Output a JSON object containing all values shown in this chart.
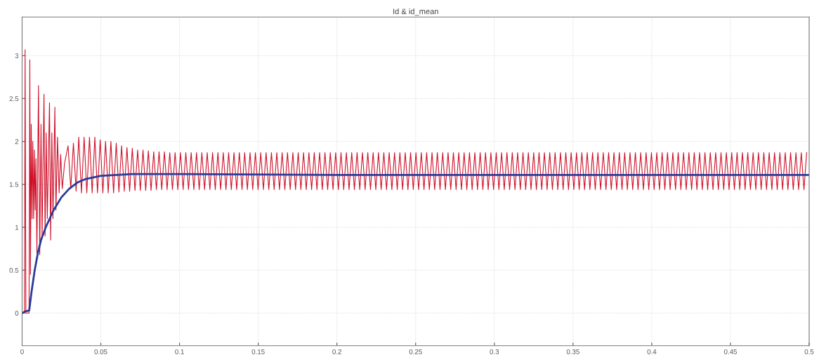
{
  "chart_data": {
    "type": "line",
    "title": "Id & id_mean",
    "xlim": [
      0,
      0.5
    ],
    "ylim": [
      -0.38,
      3.45
    ],
    "xticks": [
      0,
      0.05,
      0.1,
      0.15,
      0.2,
      0.25,
      0.3,
      0.35,
      0.4,
      0.45,
      0.5
    ],
    "yticks": [
      0,
      0.5,
      1,
      1.5,
      2,
      2.5,
      3
    ],
    "grid": true,
    "marker": "none",
    "line_style": "solid",
    "series": [
      {
        "color": "#d0102a",
        "x": [
          0,
          0.0015,
          0.0019,
          0.0024,
          0.0044,
          0.0049,
          0.0053,
          0.0058,
          0.0063,
          0.0068,
          0.0073,
          0.0078,
          0.0083,
          0.0088,
          0.0094,
          0.0104,
          0.0112,
          0.012,
          0.0127,
          0.0139,
          0.0146,
          0.0153,
          0.016,
          0.0174,
          0.0181,
          0.0189,
          0.0196,
          0.0208,
          0.0215,
          0.0225,
          0.0235,
          0.0245,
          0.0255,
          0.027,
          0.0292,
          0.0309,
          0.0326,
          0.0343,
          0.036,
          0.0377,
          0.0394,
          0.0411,
          0.0428,
          0.0445,
          0.0462,
          0.0479,
          0.0496,
          0.0513,
          0.053,
          0.0547,
          0.0564,
          0.0581,
          0.0598,
          0.0615,
          0.0632,
          0.0649,
          0.0666,
          0.0683,
          0.07,
          0.0717,
          0.0734,
          0.0751,
          0.0768,
          0.0785,
          0.0802,
          0.0819,
          0.0836,
          0.0853,
          0.087,
          0.0887,
          0.0904,
          0.0921,
          0.0938,
          0.0955,
          0.0972,
          0.0989,
          0.1006,
          0.1023,
          0.104,
          0.1057,
          0.1074,
          0.1091,
          0.1108,
          0.1125,
          0.1142,
          0.1159,
          0.1176,
          0.1193,
          0.121,
          0.1227,
          0.1244,
          0.1261,
          0.1278,
          0.1295,
          0.1312,
          0.1329,
          0.1346,
          0.1363,
          0.138,
          0.1397,
          0.1414,
          0.1431,
          0.1448,
          0.1465,
          0.1482,
          0.1499,
          0.1516,
          0.1533,
          0.155,
          0.1567,
          0.1584,
          0.1601,
          0.1618,
          0.1635,
          0.1652,
          0.1669,
          0.1686,
          0.1703,
          0.172,
          0.1737,
          0.1754,
          0.1771,
          0.1788,
          0.1805,
          0.1822,
          0.1839,
          0.1856,
          0.1873,
          0.189,
          0.1907,
          0.1924,
          0.1941,
          0.1958,
          0.1975,
          0.1992,
          0.2009,
          0.2026,
          0.2043,
          0.206,
          0.2077,
          0.2094,
          0.2111,
          0.2128,
          0.2145,
          0.2162,
          0.2179,
          0.2196,
          0.2213,
          0.223,
          0.2247,
          0.2264,
          0.2281,
          0.2298,
          0.2315,
          0.2332,
          0.2349,
          0.2366,
          0.2383,
          0.24,
          0.2417,
          0.2434,
          0.2451,
          0.2468,
          0.2485,
          0.2502,
          0.2519,
          0.2536,
          0.2553,
          0.257,
          0.2587,
          0.2604,
          0.2621,
          0.2638,
          0.2655,
          0.2672,
          0.2689,
          0.2706,
          0.2723,
          0.274,
          0.2757,
          0.2774,
          0.2791,
          0.2808,
          0.2825,
          0.2842,
          0.2859,
          0.2876,
          0.2893,
          0.291,
          0.2927,
          0.2944,
          0.2961,
          0.2978,
          0.2995,
          0.3012,
          0.3029,
          0.3046,
          0.3063,
          0.308,
          0.3097,
          0.3114,
          0.3131,
          0.3148,
          0.3165,
          0.3182,
          0.3199,
          0.3216,
          0.3233,
          0.325,
          0.3267,
          0.3284,
          0.3301,
          0.3318,
          0.3335,
          0.3352,
          0.3369,
          0.3386,
          0.3403,
          0.342,
          0.3437,
          0.3454,
          0.3471,
          0.3488,
          0.3505,
          0.3522,
          0.3539,
          0.3556,
          0.3573,
          0.359,
          0.3607,
          0.3624,
          0.3641,
          0.3658,
          0.3675,
          0.3692,
          0.3709,
          0.3726,
          0.3743,
          0.376,
          0.3777,
          0.3794,
          0.3811,
          0.3828,
          0.3845,
          0.3862,
          0.3879,
          0.3896,
          0.3913,
          0.393,
          0.3947,
          0.3964,
          0.3981,
          0.3998,
          0.4015,
          0.4032,
          0.4049,
          0.4066,
          0.4083,
          0.41,
          0.4117,
          0.4134,
          0.4151,
          0.4168,
          0.4185,
          0.4202,
          0.4219,
          0.4236,
          0.4253,
          0.427,
          0.4287,
          0.4304,
          0.4321,
          0.4338,
          0.4355,
          0.4372,
          0.4389,
          0.4406,
          0.4423,
          0.444,
          0.4457,
          0.4474,
          0.4491,
          0.4508,
          0.4525,
          0.4542,
          0.4559,
          0.4576,
          0.4593,
          0.461,
          0.4627,
          0.4644,
          0.4661,
          0.4678,
          0.4695,
          0.4712,
          0.4729,
          0.4746,
          0.4763,
          0.478,
          0.4797,
          0.4814,
          0.4831,
          0.4848,
          0.4865,
          0.4882,
          0.4899,
          0.4916,
          0.4933,
          0.495,
          0.4967,
          0.4984
        ],
        "values": [
          0,
          0,
          3.07,
          0,
          0,
          2.95,
          0.45,
          2.2,
          1.1,
          2.0,
          1.1,
          1.9,
          1.2,
          1.8,
          0.7,
          2.65,
          0.68,
          2.2,
          0.9,
          2.55,
          0.9,
          2.1,
          1.1,
          2.45,
          0.85,
          2.1,
          1.1,
          2.4,
          1.2,
          2.05,
          1.4,
          1.85,
          1.45,
          1.75,
          1.95,
          1.45,
          1.98,
          1.42,
          2.05,
          1.4,
          2.05,
          1.4,
          2.05,
          1.4,
          2.05,
          1.4,
          2.02,
          1.4,
          2.0,
          1.4,
          2.0,
          1.4,
          1.98,
          1.41,
          1.95,
          1.42,
          1.93,
          1.42,
          1.92,
          1.43,
          1.9,
          1.43,
          1.9,
          1.43,
          1.89,
          1.43,
          1.88,
          1.44,
          1.88,
          1.44,
          1.88,
          1.44,
          1.87,
          1.44,
          1.87,
          1.44,
          1.87,
          1.44,
          1.87,
          1.44,
          1.87,
          1.44,
          1.87,
          1.44,
          1.87,
          1.44,
          1.87,
          1.44,
          1.87,
          1.44,
          1.87,
          1.44,
          1.87,
          1.44,
          1.87,
          1.44,
          1.87,
          1.44,
          1.87,
          1.44,
          1.87,
          1.44,
          1.87,
          1.44,
          1.87,
          1.44,
          1.87,
          1.44,
          1.87,
          1.44,
          1.87,
          1.44,
          1.87,
          1.44,
          1.87,
          1.44,
          1.87,
          1.44,
          1.87,
          1.44,
          1.87,
          1.44,
          1.87,
          1.44,
          1.87,
          1.44,
          1.87,
          1.44,
          1.87,
          1.44,
          1.87,
          1.44,
          1.87,
          1.44,
          1.87,
          1.44,
          1.87,
          1.44,
          1.87,
          1.44,
          1.87,
          1.44,
          1.87,
          1.44,
          1.87,
          1.44,
          1.87,
          1.44,
          1.87,
          1.44,
          1.87,
          1.44,
          1.87,
          1.44,
          1.87,
          1.44,
          1.87,
          1.44,
          1.87,
          1.44,
          1.87,
          1.44,
          1.87,
          1.44,
          1.87,
          1.44,
          1.87,
          1.44,
          1.87,
          1.44,
          1.87,
          1.44,
          1.87,
          1.44,
          1.87,
          1.44,
          1.87,
          1.44,
          1.87,
          1.44,
          1.87,
          1.44,
          1.87,
          1.44,
          1.87,
          1.44,
          1.87,
          1.44,
          1.87,
          1.44,
          1.87,
          1.44,
          1.87,
          1.44,
          1.87,
          1.44,
          1.87,
          1.44,
          1.87,
          1.44,
          1.87,
          1.44,
          1.87,
          1.44,
          1.87,
          1.44,
          1.87,
          1.44,
          1.87,
          1.44,
          1.87,
          1.44,
          1.87,
          1.44,
          1.87,
          1.44,
          1.87,
          1.44,
          1.87,
          1.44,
          1.87,
          1.44,
          1.87,
          1.44,
          1.87,
          1.44,
          1.87,
          1.44,
          1.87,
          1.44,
          1.87,
          1.44,
          1.87,
          1.44,
          1.87,
          1.44,
          1.87,
          1.44,
          1.87,
          1.44,
          1.87,
          1.44,
          1.87,
          1.44,
          1.87,
          1.44,
          1.87,
          1.44,
          1.87,
          1.44,
          1.87,
          1.44,
          1.87,
          1.44,
          1.87,
          1.44,
          1.87,
          1.44,
          1.87,
          1.44,
          1.87,
          1.44,
          1.87,
          1.44,
          1.87,
          1.44,
          1.87,
          1.44,
          1.87,
          1.44,
          1.87,
          1.44,
          1.87,
          1.44,
          1.87,
          1.44,
          1.87,
          1.44,
          1.87,
          1.44,
          1.87,
          1.44,
          1.87,
          1.44,
          1.87,
          1.44,
          1.87,
          1.44,
          1.87,
          1.44,
          1.87,
          1.44,
          1.87,
          1.44,
          1.87,
          1.44,
          1.87,
          1.44,
          1.87,
          1.44,
          1.87,
          1.44,
          1.87,
          1.44,
          1.87,
          1.44,
          1.87,
          1.44,
          1.87,
          1.44,
          1.87
        ]
      },
      {
        "color": "#2a3a9a",
        "x": [
          0,
          0.002,
          0.0045,
          0.006,
          0.008,
          0.01,
          0.012,
          0.015,
          0.02,
          0.025,
          0.03,
          0.035,
          0.04,
          0.05,
          0.06,
          0.07,
          0.08,
          0.1,
          0.2,
          0.3,
          0.4,
          0.5
        ],
        "values": [
          0,
          0.02,
          0.03,
          0.25,
          0.5,
          0.7,
          0.85,
          1.0,
          1.2,
          1.35,
          1.45,
          1.52,
          1.56,
          1.6,
          1.61,
          1.62,
          1.62,
          1.62,
          1.61,
          1.61,
          1.61,
          1.61
        ]
      }
    ]
  }
}
